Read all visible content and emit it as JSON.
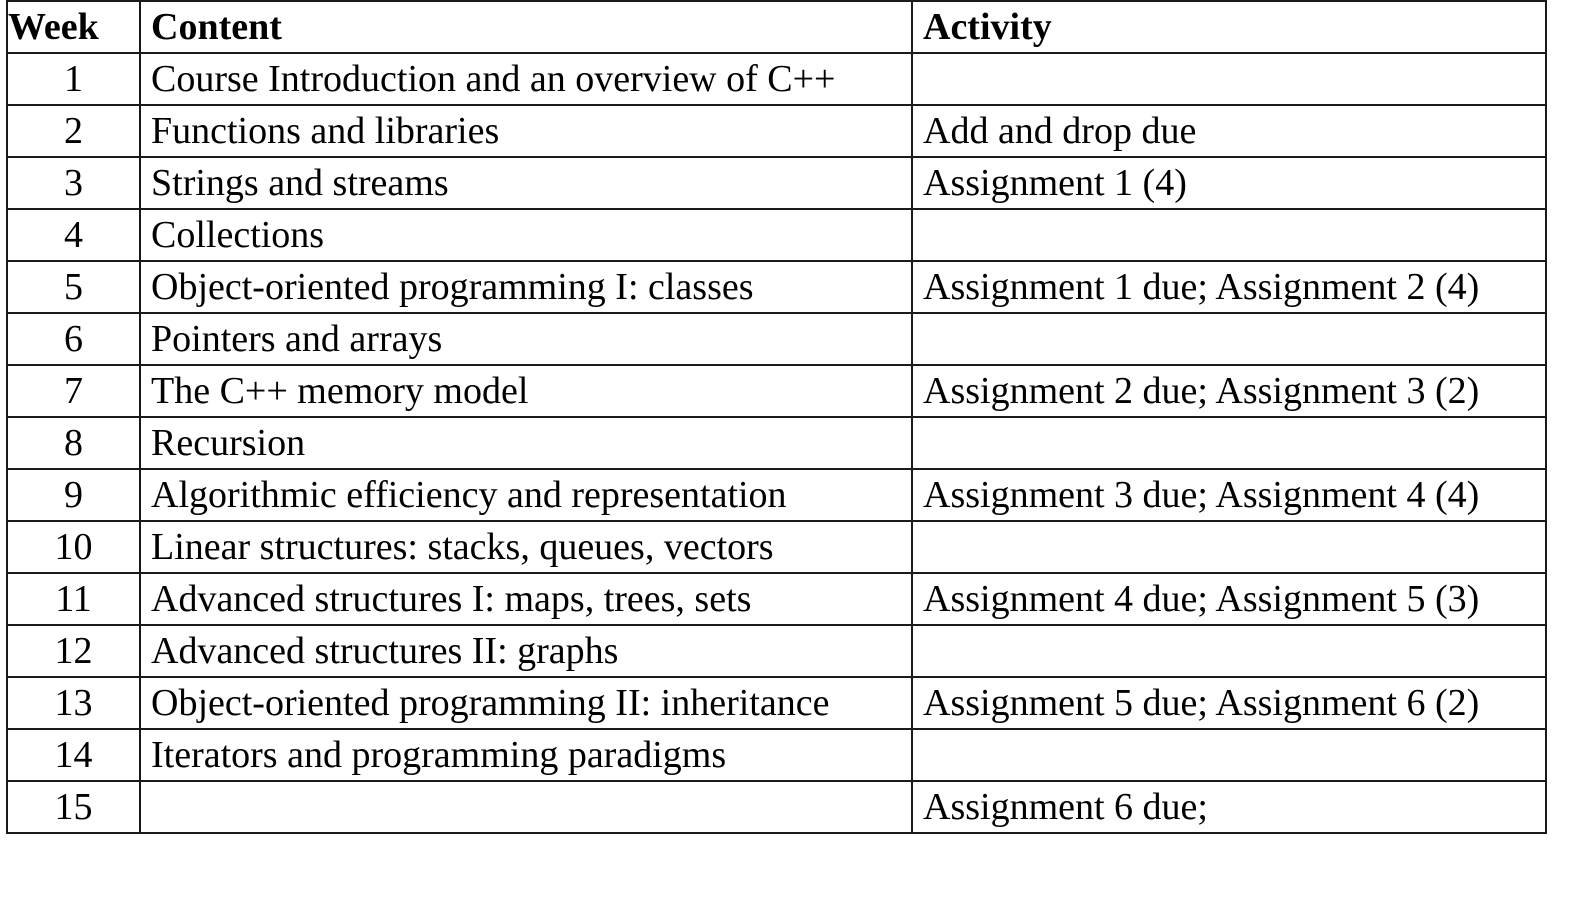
{
  "table": {
    "headers": {
      "week": "Week",
      "content": "Content",
      "activity": "Activity"
    },
    "rows": [
      {
        "week": "1",
        "content": "Course Introduction and an overview of C++",
        "activity": ""
      },
      {
        "week": "2",
        "content": "Functions and libraries",
        "activity": "Add and drop due"
      },
      {
        "week": "3",
        "content": "Strings and streams",
        "activity": "Assignment 1 (4)"
      },
      {
        "week": "4",
        "content": "Collections",
        "activity": ""
      },
      {
        "week": "5",
        "content": "Object-oriented programming I: classes",
        "activity": "Assignment 1 due; Assignment 2 (4)"
      },
      {
        "week": "6",
        "content": "Pointers and arrays",
        "activity": ""
      },
      {
        "week": "7",
        "content": "The C++ memory model",
        "activity": "Assignment 2 due; Assignment 3 (2)"
      },
      {
        "week": "8",
        "content": "Recursion",
        "activity": ""
      },
      {
        "week": "9",
        "content": "Algorithmic efficiency and representation",
        "activity": "Assignment 3 due; Assignment 4 (4)"
      },
      {
        "week": "10",
        "content": "Linear structures: stacks, queues, vectors",
        "activity": ""
      },
      {
        "week": "11",
        "content": "Advanced structures I: maps, trees, sets",
        "activity": "Assignment 4 due; Assignment 5 (3)"
      },
      {
        "week": "12",
        "content": "Advanced structures II: graphs",
        "activity": ""
      },
      {
        "week": "13",
        "content": "Object-oriented programming II: inheritance",
        "activity": "Assignment 5 due; Assignment 6 (2)"
      },
      {
        "week": "14",
        "content": "Iterators and programming paradigms",
        "activity": ""
      },
      {
        "week": "15",
        "content": "",
        "activity": "Assignment 6 due;"
      }
    ]
  }
}
